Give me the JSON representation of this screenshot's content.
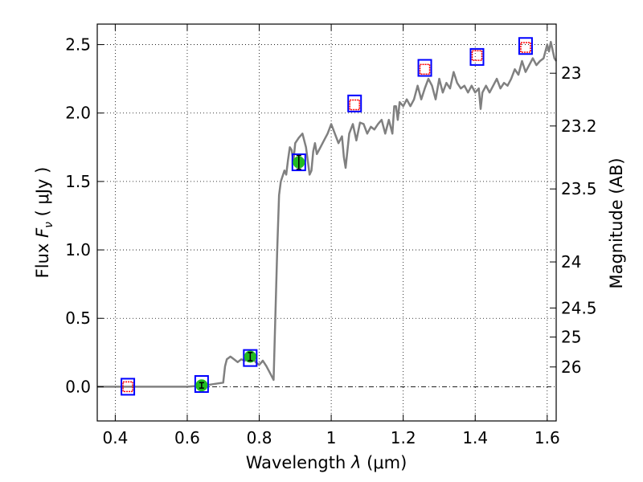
{
  "chart_data": {
    "type": "line",
    "xlabel": "Wavelength λ (μm)",
    "xlabel_parts": {
      "lead": "Wavelength  ",
      "sym": "λ",
      "unit": " (μm)"
    },
    "ylabel": "Flux Fν ( μJy )",
    "ylabel_parts": {
      "lead": "Flux ",
      "sym": "F",
      "sub": "ν",
      "unit": " ( μJy )"
    },
    "y2label": "Magnitude (AB)",
    "xlim": [
      0.35,
      1.625
    ],
    "ylim": [
      -0.25,
      2.65
    ],
    "grid": true,
    "x_ticks": [
      {
        "value": 0.4,
        "label": "0.4"
      },
      {
        "value": 0.6,
        "label": "0.6"
      },
      {
        "value": 0.8,
        "label": "0.8"
      },
      {
        "value": 1.0,
        "label": "1"
      },
      {
        "value": 1.2,
        "label": "1.2"
      },
      {
        "value": 1.4,
        "label": "1.4"
      },
      {
        "value": 1.6,
        "label": "1.6"
      }
    ],
    "y_ticks": [
      {
        "value": 0.0,
        "label": "0.0"
      },
      {
        "value": 0.5,
        "label": "0.5"
      },
      {
        "value": 1.0,
        "label": "1.0"
      },
      {
        "value": 1.5,
        "label": "1.5"
      },
      {
        "value": 2.0,
        "label": "2.0"
      },
      {
        "value": 2.5,
        "label": "2.5"
      }
    ],
    "mag_ticks": [
      {
        "value": 23.0,
        "label": "23"
      },
      {
        "value": 23.2,
        "label": "23.2"
      },
      {
        "value": 23.5,
        "label": "23.5"
      },
      {
        "value": 24.0,
        "label": "24"
      },
      {
        "value": 24.5,
        "label": "24.5"
      },
      {
        "value": 25.0,
        "label": "25"
      },
      {
        "value": 26.0,
        "label": "26"
      }
    ],
    "colors": {
      "model": "#808080",
      "model_box": "#0000ff",
      "upper_limit": "#ff0000",
      "detection": "#22bb22",
      "zero_line": "#000000",
      "grid": "#000000"
    },
    "model_spectrum": {
      "x": [
        0.35,
        0.45,
        0.5,
        0.6,
        0.65,
        0.7,
        0.705,
        0.71,
        0.72,
        0.73,
        0.74,
        0.75,
        0.76,
        0.77,
        0.78,
        0.79,
        0.8,
        0.81,
        0.82,
        0.83,
        0.84,
        0.85,
        0.855,
        0.86,
        0.87,
        0.875,
        0.88,
        0.885,
        0.89,
        0.895,
        0.9,
        0.91,
        0.92,
        0.93,
        0.94,
        0.945,
        0.95,
        0.955,
        0.96,
        0.97,
        0.98,
        0.99,
        1.0,
        1.01,
        1.02,
        1.03,
        1.035,
        1.04,
        1.05,
        1.06,
        1.07,
        1.08,
        1.09,
        1.1,
        1.11,
        1.12,
        1.13,
        1.14,
        1.15,
        1.16,
        1.17,
        1.175,
        1.18,
        1.185,
        1.19,
        1.2,
        1.21,
        1.22,
        1.23,
        1.24,
        1.25,
        1.26,
        1.27,
        1.28,
        1.29,
        1.3,
        1.31,
        1.32,
        1.33,
        1.34,
        1.35,
        1.36,
        1.37,
        1.38,
        1.39,
        1.4,
        1.41,
        1.415,
        1.42,
        1.43,
        1.44,
        1.45,
        1.46,
        1.47,
        1.48,
        1.49,
        1.5,
        1.51,
        1.52,
        1.53,
        1.54,
        1.55,
        1.56,
        1.57,
        1.58,
        1.59,
        1.6,
        1.605,
        1.61,
        1.62,
        1.625
      ],
      "y": [
        0.0,
        0.0,
        0.0,
        0.0,
        0.01,
        0.03,
        0.15,
        0.2,
        0.22,
        0.2,
        0.18,
        0.2,
        0.19,
        0.22,
        0.22,
        0.18,
        0.16,
        0.19,
        0.15,
        0.1,
        0.05,
        1.0,
        1.4,
        1.5,
        1.58,
        1.55,
        1.66,
        1.75,
        1.73,
        1.65,
        1.78,
        1.82,
        1.85,
        1.75,
        1.55,
        1.58,
        1.72,
        1.78,
        1.7,
        1.75,
        1.8,
        1.85,
        1.92,
        1.85,
        1.78,
        1.83,
        1.68,
        1.6,
        1.85,
        1.92,
        1.8,
        1.93,
        1.92,
        1.85,
        1.9,
        1.88,
        1.92,
        1.95,
        1.85,
        1.95,
        1.85,
        2.05,
        2.05,
        1.95,
        2.08,
        2.05,
        2.1,
        2.05,
        2.1,
        2.2,
        2.1,
        2.18,
        2.25,
        2.2,
        2.1,
        2.25,
        2.15,
        2.22,
        2.18,
        2.3,
        2.22,
        2.18,
        2.2,
        2.15,
        2.2,
        2.15,
        2.18,
        2.03,
        2.15,
        2.2,
        2.15,
        2.2,
        2.25,
        2.18,
        2.22,
        2.2,
        2.25,
        2.32,
        2.28,
        2.38,
        2.3,
        2.35,
        2.4,
        2.35,
        2.38,
        2.4,
        2.5,
        2.45,
        2.52,
        2.4,
        2.38
      ]
    },
    "model_fluxes": [
      {
        "x": 0.435,
        "y": 0.0
      },
      {
        "x": 0.64,
        "y": 0.02
      },
      {
        "x": 0.775,
        "y": 0.21
      },
      {
        "x": 0.91,
        "y": 1.64
      },
      {
        "x": 1.065,
        "y": 2.07
      },
      {
        "x": 1.26,
        "y": 2.33
      },
      {
        "x": 1.405,
        "y": 2.41
      },
      {
        "x": 1.54,
        "y": 2.49
      }
    ],
    "upper_limits": [
      {
        "x": 0.435,
        "y": 0.0
      },
      {
        "x": 1.065,
        "y": 2.06
      },
      {
        "x": 1.26,
        "y": 2.32
      },
      {
        "x": 1.405,
        "y": 2.42
      },
      {
        "x": 1.54,
        "y": 2.48
      }
    ],
    "detections": [
      {
        "x": 0.64,
        "y": 0.01,
        "err": 0.02
      },
      {
        "x": 0.775,
        "y": 0.22,
        "err": 0.03
      },
      {
        "x": 0.91,
        "y": 1.64,
        "err": 0.05
      }
    ]
  }
}
